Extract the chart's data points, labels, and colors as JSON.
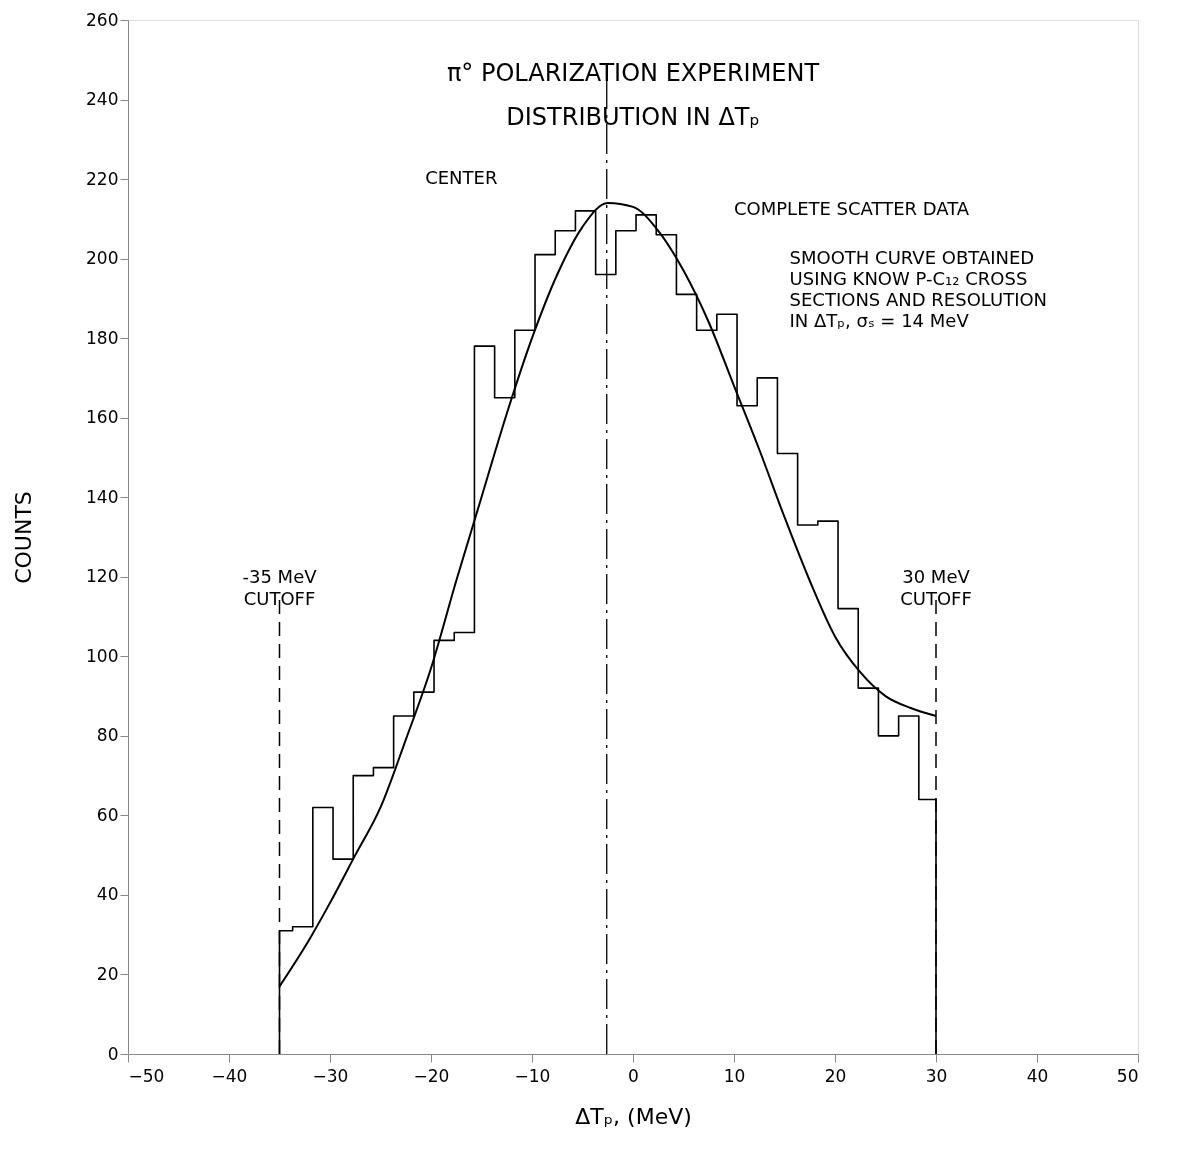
{
  "chart_data": {
    "type": "histogram",
    "title": [
      "π° POLARIZATION EXPERIMENT",
      "DISTRIBUTION IN ΔTₚ"
    ],
    "xlabel": "ΔTₚ, (MeV)",
    "ylabel": "COUNTS",
    "bins": [
      -35,
      -33.7,
      -31.7,
      -29.7,
      -27.7,
      -25.7,
      -23.7,
      -21.7,
      -19.7,
      -17.7,
      -15.7,
      -13.7,
      -11.7,
      -9.7,
      -7.7,
      -5.7,
      -3.7,
      -1.7,
      0.3,
      2.3,
      4.3,
      6.3,
      8.3,
      10.3,
      12.3,
      14.3,
      16.3,
      18.3,
      20.3,
      22.3,
      24.3,
      26.3,
      28.3,
      30
    ],
    "values": [
      31,
      32,
      62,
      49,
      70,
      72,
      85,
      91,
      104,
      106,
      178,
      165,
      182,
      201,
      207,
      212,
      196,
      207,
      211,
      206,
      191,
      182,
      186,
      163,
      170,
      151,
      133,
      134,
      112,
      92,
      80,
      85,
      64
    ],
    "color": "#000000",
    "series": [
      {
        "type": "line",
        "color": "#000000",
        "x": [
          -35,
          -32,
          -30,
          -27.5,
          -25,
          -22.5,
          -20,
          -17.5,
          -15,
          -12.5,
          -10,
          -7.5,
          -5,
          -2.5,
          0,
          2.5,
          5,
          7.5,
          10,
          12.5,
          15,
          17.5,
          20,
          22.5,
          25,
          27.5,
          30
        ],
        "values": [
          17,
          29,
          38,
          50,
          62,
          79,
          97,
          119,
          140,
          161,
          180,
          196,
          208,
          214,
          213,
          207,
          197,
          184,
          168,
          152,
          135,
          119,
          105,
          96,
          90,
          87,
          85
        ]
      }
    ],
    "xlim": [
      -50,
      50
    ],
    "xticks": [
      -50,
      -40,
      -30,
      -20,
      -10,
      0,
      10,
      20,
      30,
      40,
      50
    ],
    "ylim": [
      0,
      260
    ],
    "yticks": [
      0,
      20,
      40,
      60,
      80,
      100,
      120,
      140,
      160,
      180,
      200,
      220,
      240,
      260
    ],
    "ref_lines": [
      {
        "axis": "x",
        "value": -35,
        "label": "-35 MeV\nCUTOFF",
        "line_style": "dashed",
        "color": "#000000"
      },
      {
        "axis": "x",
        "value": 30,
        "label": "30 MeV\nCUTOFF",
        "line_style": "dashed",
        "color": "#000000"
      },
      {
        "axis": "x",
        "value": -2.6,
        "line_style": "dashed",
        "color": "#000000"
      }
    ],
    "annotations": [
      "CENTER",
      "COMPLETE SCATTER DATA",
      "SMOOTH CURVE OBTAINED\nUSING KNOW P-C₁₂ CROSS\nSECTIONS AND RESOLUTION\nIN ΔTₚ, σₛ = 14 MeV"
    ],
    "grid": false
  }
}
